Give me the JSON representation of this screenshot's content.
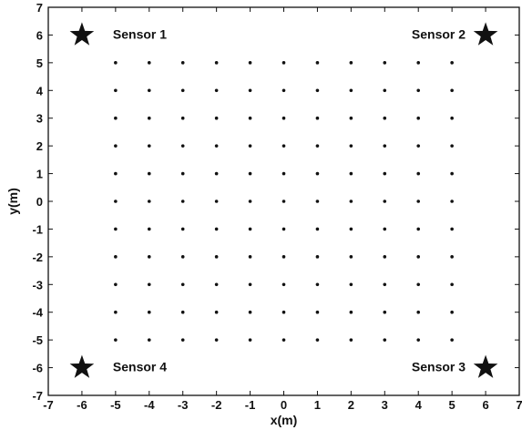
{
  "chart_data": {
    "type": "scatter",
    "xlabel": "x(m)",
    "ylabel": "y(m)",
    "xlim": [
      -7,
      7
    ],
    "ylim": [
      -7,
      7
    ],
    "xticks": [
      -7,
      -6,
      -5,
      -4,
      -3,
      -2,
      -1,
      0,
      1,
      2,
      3,
      4,
      5,
      6,
      7
    ],
    "yticks": [
      -7,
      -6,
      -5,
      -4,
      -3,
      -2,
      -1,
      0,
      1,
      2,
      3,
      4,
      5,
      6,
      7
    ],
    "grid": false,
    "marker_color": "#111111",
    "grid_points": {
      "x": [
        -5,
        -4,
        -3,
        -2,
        -1,
        0,
        1,
        2,
        3,
        4,
        5
      ],
      "y": [
        -5,
        -4,
        -3,
        -2,
        -1,
        0,
        1,
        2,
        3,
        4,
        5
      ],
      "marker": "dot"
    },
    "sensors": [
      {
        "label": "Sensor 1",
        "x": -6,
        "y": 6,
        "marker": "star",
        "label_side": "right"
      },
      {
        "label": "Sensor 2",
        "x": 6,
        "y": 6,
        "marker": "star",
        "label_side": "left"
      },
      {
        "label": "Sensor 3",
        "x": 6,
        "y": -6,
        "marker": "star",
        "label_side": "left"
      },
      {
        "label": "Sensor 4",
        "x": -6,
        "y": -6,
        "marker": "star",
        "label_side": "right"
      }
    ]
  }
}
